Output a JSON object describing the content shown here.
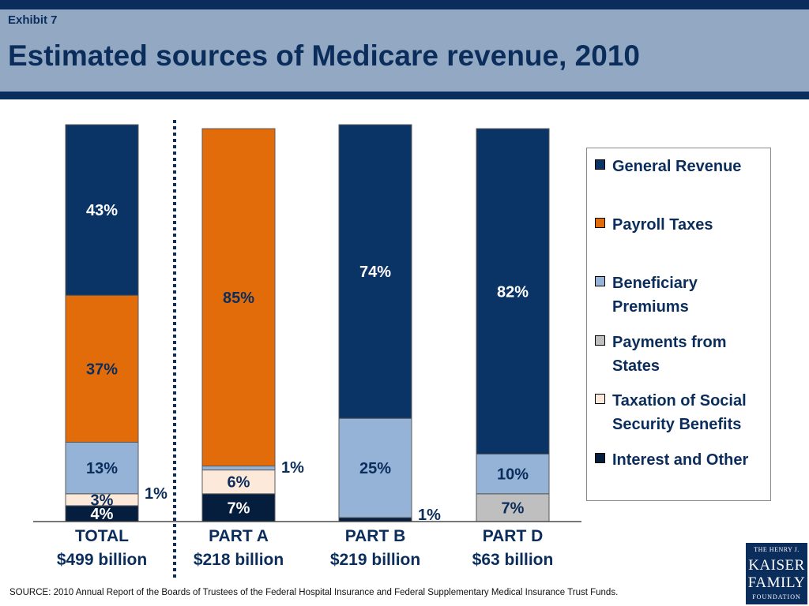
{
  "header": {
    "exhibit": "Exhibit 7",
    "title": "Estimated sources of Medicare revenue, 2010"
  },
  "legend": {
    "items": [
      {
        "label": "General Revenue",
        "color": "#0b3466"
      },
      {
        "label": "Payroll Taxes",
        "color": "#e36c0a"
      },
      {
        "label": "Beneficiary Premiums",
        "color": "#95b3d7"
      },
      {
        "label": "Payments from States",
        "color": "#bfbfbf"
      },
      {
        "label": "Taxation of Social Security Benefits",
        "color": "#fde9d9"
      },
      {
        "label": "Interest and Other",
        "color": "#061e3e"
      }
    ]
  },
  "source": "SOURCE: 2010 Annual Report of the Boards of Trustees of the Federal Hospital Insurance and Federal Supplementary Medical Insurance Trust Funds.",
  "logo": {
    "line1": "THE HENRY J.",
    "line2": "KAISER",
    "line3": "FAMILY",
    "line4": "FOUNDATION"
  },
  "chart_data": {
    "type": "bar",
    "stacked": true,
    "percent": true,
    "ylim": [
      0,
      100
    ],
    "categories": [
      "TOTAL",
      "PART A",
      "PART B",
      "PART D"
    ],
    "category_sublabels": [
      "$499 billion",
      "$218 billion",
      "$219 billion",
      "$63 billion"
    ],
    "separator_after": "TOTAL",
    "series": [
      {
        "name": "Interest and Other",
        "color": "#061e3e",
        "label_color": "#ffffff",
        "values": [
          4,
          7,
          1,
          0
        ],
        "labels": [
          "4%",
          "7%",
          "1%",
          ""
        ]
      },
      {
        "name": "Taxation of Social Security Benefits",
        "color": "#fde9d9",
        "label_color": "#0b2d5c",
        "values": [
          3,
          6,
          0,
          0
        ],
        "labels": [
          "3%",
          "6%",
          "",
          ""
        ]
      },
      {
        "name": "Payments from States",
        "color": "#bfbfbf",
        "label_color": "#0b2d5c",
        "values": [
          0,
          0,
          0,
          7
        ],
        "labels": [
          "",
          "",
          "",
          "7%"
        ]
      },
      {
        "name": "Beneficiary Premiums",
        "color": "#95b3d7",
        "label_color": "#0b2d5c",
        "values": [
          13,
          1,
          25,
          10
        ],
        "labels": [
          "13%",
          "1%",
          "25%",
          "10%"
        ]
      },
      {
        "name": "Payroll Taxes",
        "color": "#e36c0a",
        "label_color": "#0b2d5c",
        "values": [
          37,
          85,
          0,
          0
        ],
        "labels": [
          "37%",
          "85%",
          "",
          ""
        ]
      },
      {
        "name": "General Revenue",
        "color": "#0b3466",
        "label_color": "#ffffff",
        "values": [
          43,
          0,
          74,
          82
        ],
        "labels": [
          "43%",
          "",
          "74%",
          "82%"
        ]
      }
    ],
    "outside_labels": [
      {
        "category": "TOTAL",
        "text": "1%"
      },
      {
        "category": "PART A",
        "text": "1%"
      },
      {
        "category": "PART B",
        "text": "1%"
      }
    ]
  }
}
